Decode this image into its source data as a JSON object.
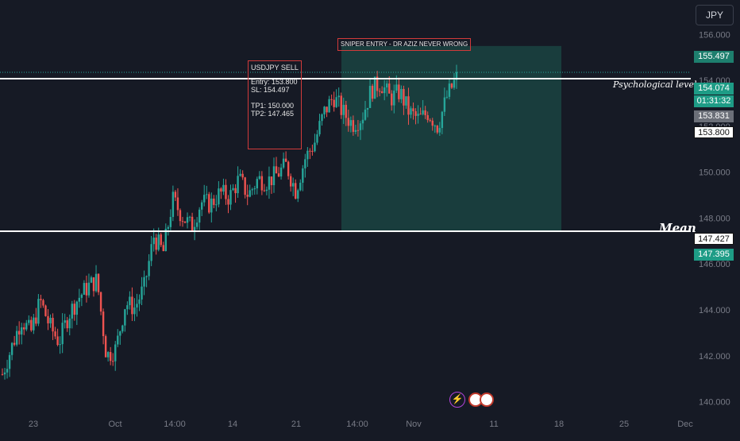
{
  "currency_button": {
    "label": "JPY"
  },
  "annotations": {
    "banner": "SNIPER ENTRY - DR AZIZ NEVER WRONG",
    "note_title": "USDJPY SELL",
    "note_entry": "Entry: 153.800",
    "note_sl": "SL: 154.497",
    "note_tp1": "TP1: 150.000",
    "note_tp2": "TP2: 147.465",
    "psychological_label": "Psychological level",
    "mean_label": "Mean"
  },
  "price_tags": {
    "top_target": "155.497",
    "current_price": "154.074",
    "countdown": "01:31:32",
    "gray_level": "153.831",
    "entry_level": "153.800",
    "mean_level": "147.427",
    "bottom_target": "147.395"
  },
  "colors": {
    "background": "#161a25",
    "up": "#26a69a",
    "down": "#ef5350",
    "zone": "#1e5b52",
    "accent_red": "#d23a3a"
  },
  "chart_data": {
    "type": "candlestick",
    "symbol": "USDJPY",
    "yticks": [
      140,
      142,
      144,
      146,
      148,
      150,
      152,
      154,
      156
    ],
    "ytick_labels": [
      "140.000",
      "142.000",
      "144.000",
      "146.000",
      "148.000",
      "150.000",
      "152.000",
      "154.000",
      "156.000"
    ],
    "ylim": [
      139.5,
      157.5
    ],
    "xtick_labels": [
      "23",
      "Oct",
      "14:00",
      "14",
      "21",
      "14:00",
      "Nov",
      "11",
      "18",
      "25",
      "Dec"
    ],
    "horizontal_lines": [
      154.074,
      147.427
    ],
    "target_zone": {
      "top": 155.497,
      "bottom": 147.395
    },
    "close_path_approx": [
      141.2,
      142.4,
      143.6,
      143.0,
      144.4,
      143.3,
      142.6,
      143.8,
      144.5,
      145.0,
      145.3,
      142.0,
      142.3,
      144.3,
      144.1,
      145.0,
      147.2,
      146.5,
      148.8,
      148.1,
      147.6,
      148.7,
      148.6,
      149.1,
      148.9,
      149.7,
      149.0,
      149.7,
      149.6,
      149.9,
      150.3,
      149.2,
      150.6,
      151.3,
      152.6,
      153.3,
      152.6,
      152.1,
      152.4,
      153.6,
      153.9,
      153.2,
      153.5,
      152.6,
      152.3,
      152.6,
      152.0,
      153.3,
      154.1
    ]
  }
}
